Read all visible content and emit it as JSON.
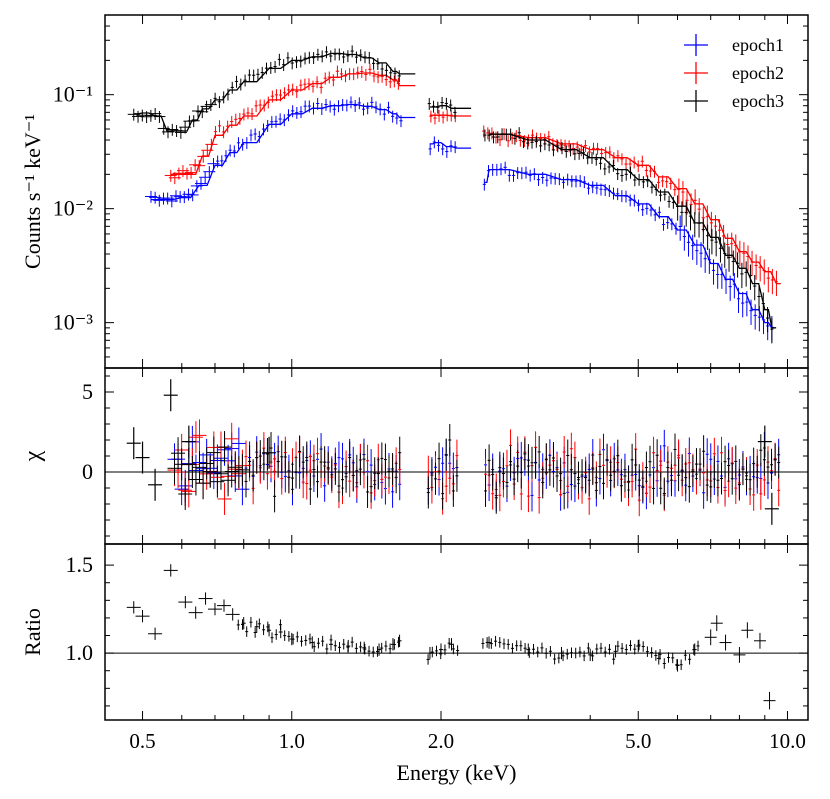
{
  "chart_data": [
    {
      "type": "scatter",
      "panel": "spectrum",
      "xlabel": "",
      "ylabel": "Counts s⁻¹ keV⁻¹",
      "xscale": "log",
      "yscale": "log",
      "xlim": [
        0.42,
        11.0
      ],
      "ylim": [
        0.0004,
        0.5
      ],
      "y_ticks": [
        0.001,
        0.01,
        0.1
      ],
      "y_tick_labels": [
        "10⁻³",
        "10⁻²",
        "10⁻¹"
      ],
      "legend_position": "top-right",
      "series": [
        {
          "name": "epoch1",
          "color": "#0000ff",
          "points": [
            [
              0.52,
              0.012
            ],
            [
              0.55,
              0.012
            ],
            [
              0.6,
              0.0125
            ],
            [
              0.65,
              0.016
            ],
            [
              0.7,
              0.024
            ],
            [
              0.75,
              0.031
            ],
            [
              0.8,
              0.038
            ],
            [
              0.9,
              0.055
            ],
            [
              1.0,
              0.068
            ],
            [
              1.1,
              0.076
            ],
            [
              1.2,
              0.08
            ],
            [
              1.3,
              0.082
            ],
            [
              1.4,
              0.079
            ],
            [
              1.5,
              0.074
            ],
            [
              1.6,
              0.068
            ],
            [
              1.65,
              0.063
            ],
            [
              1.9,
              0.037
            ],
            [
              1.95,
              0.038
            ],
            [
              2.05,
              0.035
            ],
            [
              2.15,
              0.034
            ],
            [
              2.45,
              0.017
            ],
            [
              2.5,
              0.022
            ],
            [
              3.0,
              0.02
            ],
            [
              3.5,
              0.018
            ],
            [
              4.0,
              0.016
            ],
            [
              4.5,
              0.013
            ],
            [
              5.0,
              0.011
            ],
            [
              5.5,
              0.0085
            ],
            [
              6.0,
              0.0065
            ],
            [
              6.5,
              0.0048
            ],
            [
              7.0,
              0.0033
            ],
            [
              7.5,
              0.0024
            ],
            [
              8.0,
              0.0018
            ],
            [
              8.5,
              0.0013
            ],
            [
              9.0,
              0.001
            ],
            [
              9.3,
              0.0009
            ]
          ]
        },
        {
          "name": "epoch2",
          "color": "#ff0000",
          "points": [
            [
              0.57,
              0.02
            ],
            [
              0.62,
              0.02
            ],
            [
              0.66,
              0.029
            ],
            [
              0.7,
              0.044
            ],
            [
              0.75,
              0.054
            ],
            [
              0.8,
              0.065
            ],
            [
              0.9,
              0.09
            ],
            [
              1.0,
              0.11
            ],
            [
              1.1,
              0.125
            ],
            [
              1.2,
              0.142
            ],
            [
              1.3,
              0.152
            ],
            [
              1.4,
              0.155
            ],
            [
              1.5,
              0.148
            ],
            [
              1.6,
              0.135
            ],
            [
              1.65,
              0.12
            ],
            [
              1.9,
              0.066
            ],
            [
              2.0,
              0.066
            ],
            [
              2.1,
              0.065
            ],
            [
              2.5,
              0.045
            ],
            [
              3.0,
              0.042
            ],
            [
              3.5,
              0.037
            ],
            [
              4.0,
              0.033
            ],
            [
              4.5,
              0.028
            ],
            [
              5.0,
              0.024
            ],
            [
              5.5,
              0.019
            ],
            [
              6.0,
              0.015
            ],
            [
              6.5,
              0.011
            ],
            [
              7.0,
              0.008
            ],
            [
              7.5,
              0.0055
            ],
            [
              8.0,
              0.0042
            ],
            [
              8.5,
              0.0034
            ],
            [
              9.0,
              0.0028
            ],
            [
              9.5,
              0.0022
            ]
          ]
        },
        {
          "name": "epoch3",
          "color": "#000000",
          "points": [
            [
              0.48,
              0.068
            ],
            [
              0.5,
              0.069
            ],
            [
              0.53,
              0.065
            ],
            [
              0.56,
              0.048
            ],
            [
              0.6,
              0.048
            ],
            [
              0.63,
              0.06
            ],
            [
              0.66,
              0.075
            ],
            [
              0.7,
              0.09
            ],
            [
              0.75,
              0.11
            ],
            [
              0.8,
              0.13
            ],
            [
              0.9,
              0.17
            ],
            [
              1.0,
              0.2
            ],
            [
              1.1,
              0.215
            ],
            [
              1.2,
              0.23
            ],
            [
              1.3,
              0.225
            ],
            [
              1.4,
              0.21
            ],
            [
              1.5,
              0.19
            ],
            [
              1.6,
              0.16
            ],
            [
              1.65,
              0.152
            ],
            [
              1.9,
              0.078
            ],
            [
              2.0,
              0.08
            ],
            [
              2.1,
              0.076
            ],
            [
              2.5,
              0.045
            ],
            [
              3.0,
              0.04
            ],
            [
              3.5,
              0.033
            ],
            [
              4.0,
              0.028
            ],
            [
              4.5,
              0.022
            ],
            [
              5.0,
              0.018
            ],
            [
              5.5,
              0.014
            ],
            [
              6.0,
              0.0105
            ],
            [
              6.5,
              0.0075
            ],
            [
              7.0,
              0.0056
            ],
            [
              7.5,
              0.0039
            ],
            [
              8.0,
              0.003
            ],
            [
              8.5,
              0.0022
            ],
            [
              9.0,
              0.0013
            ],
            [
              9.3,
              0.0009
            ]
          ]
        }
      ]
    },
    {
      "type": "scatter",
      "panel": "residuals",
      "xlabel": "",
      "ylabel": "χ",
      "xscale": "log",
      "xlim": [
        0.42,
        11.0
      ],
      "ylim": [
        -4.5,
        6.5
      ],
      "y_ticks": [
        0,
        5
      ],
      "y_tick_labels": [
        "0",
        "5"
      ],
      "series": [
        {
          "name": "epoch1",
          "color": "#0000ff"
        },
        {
          "name": "epoch2",
          "color": "#ff0000"
        },
        {
          "name": "epoch3",
          "color": "#000000",
          "highlight_points": [
            [
              0.48,
              1.8
            ],
            [
              0.5,
              0.9
            ],
            [
              0.53,
              -0.8
            ],
            [
              0.57,
              4.8
            ],
            [
              0.62,
              1.9
            ],
            [
              0.9,
              1.2
            ],
            [
              9.3,
              -2.3
            ],
            [
              9.0,
              1.9
            ]
          ]
        }
      ]
    },
    {
      "type": "scatter",
      "panel": "ratio",
      "xlabel": "Energy (keV)",
      "ylabel": "Ratio",
      "xscale": "log",
      "xlim": [
        0.42,
        11.0
      ],
      "ylim": [
        0.62,
        1.62
      ],
      "y_ticks": [
        1.0,
        1.5
      ],
      "y_tick_labels": [
        "1.0",
        "1.5"
      ],
      "x_ticks": [
        0.5,
        1.0,
        2.0,
        5.0,
        10.0
      ],
      "x_tick_labels": [
        "0.5",
        "1.0",
        "2.0",
        "5.0",
        "10.0"
      ],
      "series": [
        {
          "name": "epoch3",
          "color": "#000000",
          "points": [
            [
              0.48,
              1.26
            ],
            [
              0.5,
              1.21
            ],
            [
              0.53,
              1.11
            ],
            [
              0.57,
              1.47
            ],
            [
              0.61,
              1.29
            ],
            [
              0.64,
              1.23
            ],
            [
              0.67,
              1.31
            ],
            [
              0.7,
              1.25
            ],
            [
              0.73,
              1.27
            ],
            [
              0.76,
              1.22
            ],
            [
              0.8,
              1.17
            ],
            [
              0.85,
              1.15
            ],
            [
              0.9,
              1.13
            ],
            [
              0.95,
              1.12
            ],
            [
              1.0,
              1.08
            ],
            [
              1.1,
              1.06
            ],
            [
              1.2,
              1.05
            ],
            [
              1.3,
              1.04
            ],
            [
              1.4,
              1.03
            ],
            [
              1.5,
              1.02
            ],
            [
              1.6,
              1.05
            ],
            [
              1.65,
              1.07
            ],
            [
              1.9,
              1.0
            ],
            [
              2.0,
              1.02
            ],
            [
              2.1,
              1.05
            ],
            [
              2.5,
              1.06
            ],
            [
              3.0,
              1.02
            ],
            [
              3.5,
              1.0
            ],
            [
              4.0,
              0.99
            ],
            [
              4.5,
              1.01
            ],
            [
              5.0,
              1.04
            ],
            [
              5.5,
              0.97
            ],
            [
              6.0,
              0.93
            ],
            [
              6.5,
              1.02
            ],
            [
              7.0,
              1.09
            ],
            [
              7.2,
              1.17
            ],
            [
              7.5,
              1.06
            ],
            [
              8.0,
              0.99
            ],
            [
              8.3,
              1.13
            ],
            [
              8.8,
              1.07
            ],
            [
              9.2,
              0.73
            ]
          ]
        }
      ]
    }
  ]
}
